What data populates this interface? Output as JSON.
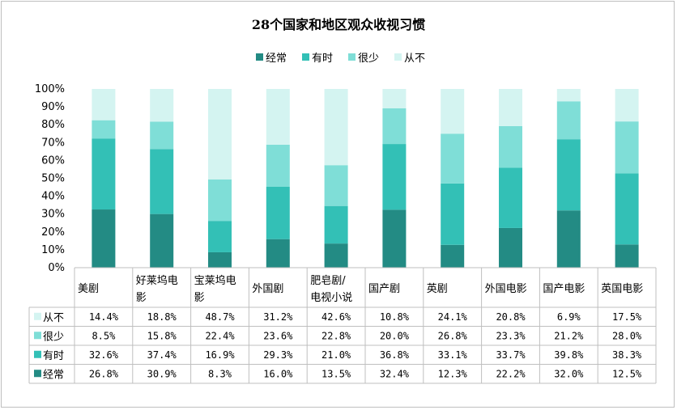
{
  "chart_data": {
    "type": "bar",
    "stacked": true,
    "percent_stacked": true,
    "title": "28个国家和地区观众收视习惯",
    "legend_position": "top",
    "categories": [
      "美剧",
      "好莱坞电影",
      "宝莱坞电影",
      "外国剧",
      "肥皂剧/电视小说",
      "国产剧",
      "英剧",
      "外国电影",
      "国产电影",
      "英国电影"
    ],
    "category_labels": [
      [
        "美剧"
      ],
      [
        "好莱坞电",
        "影"
      ],
      [
        "宝莱坞电",
        "影"
      ],
      [
        "外国剧"
      ],
      [
        "肥皂剧/",
        "电视小说"
      ],
      [
        "国产剧"
      ],
      [
        "英剧"
      ],
      [
        "外国电影"
      ],
      [
        "国产电影"
      ],
      [
        "英国电影"
      ]
    ],
    "series": [
      {
        "name": "经常",
        "color": "#238b84",
        "values": [
          26.8,
          30.9,
          8.3,
          16.0,
          13.5,
          32.4,
          12.3,
          22.2,
          32.0,
          12.5
        ]
      },
      {
        "name": "有时",
        "color": "#33c0b6",
        "values": [
          32.6,
          37.4,
          16.9,
          29.3,
          21.0,
          36.8,
          33.1,
          33.7,
          39.8,
          38.3
        ]
      },
      {
        "name": "很少",
        "color": "#7fded7",
        "values": [
          8.5,
          15.8,
          22.4,
          23.6,
          22.8,
          20.0,
          26.8,
          23.3,
          21.2,
          28.0
        ]
      },
      {
        "name": "从不",
        "color": "#d4f4f1",
        "values": [
          14.4,
          18.8,
          48.7,
          31.2,
          42.6,
          10.8,
          24.1,
          20.8,
          6.9,
          17.5
        ]
      }
    ],
    "y_ticks": [
      "0%",
      "10%",
      "20%",
      "30%",
      "40%",
      "50%",
      "60%",
      "70%",
      "80%",
      "90%",
      "100%"
    ],
    "ylim": [
      0,
      100
    ],
    "grid": false,
    "data_table": true,
    "table_row_order": [
      "从不",
      "很少",
      "有时",
      "经常"
    ]
  }
}
